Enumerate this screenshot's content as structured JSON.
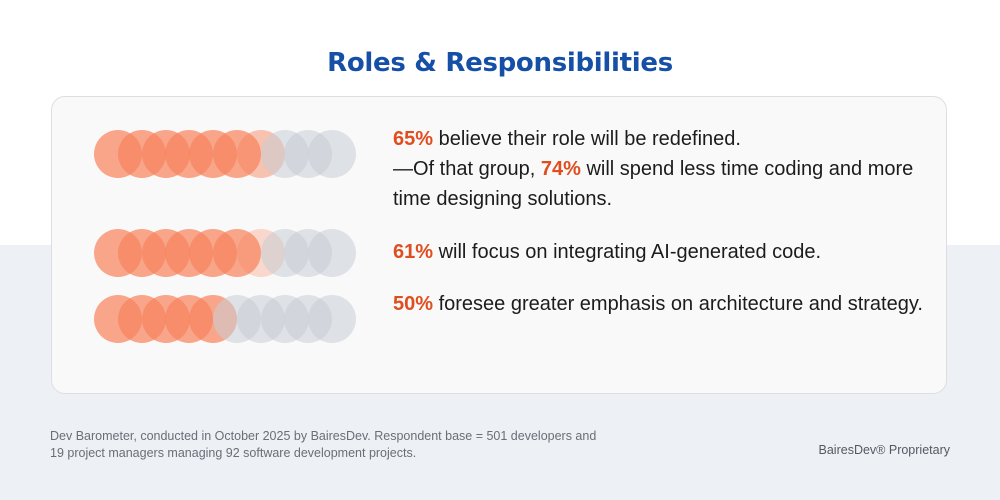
{
  "title": "Roles & Responsibilities",
  "colors": {
    "accent": "#e04e1f",
    "title": "#1550a6",
    "dot_filled": "#f7845e",
    "dot_empty": "#c9ced5"
  },
  "stats": [
    {
      "value": 65,
      "pct": "65%",
      "text": " believe their role will be redefined.",
      "line2_prefix": "—Of that group, ",
      "sub_pct": "74%",
      "line2_suffix": " will spend less time coding and more time designing solutions."
    },
    {
      "value": 61,
      "pct": "61%",
      "text": " will focus on integrating AI-generated code."
    },
    {
      "value": 50,
      "pct": "50%",
      "text": " foresee greater emphasis on architecture and strategy."
    }
  ],
  "footnote": "Dev Barometer, conducted in October 2025 by BairesDev. Respondent base = 501 developers and 19 project managers managing 92 software development projects.",
  "proprietary": "BairesDev® Proprietary"
}
